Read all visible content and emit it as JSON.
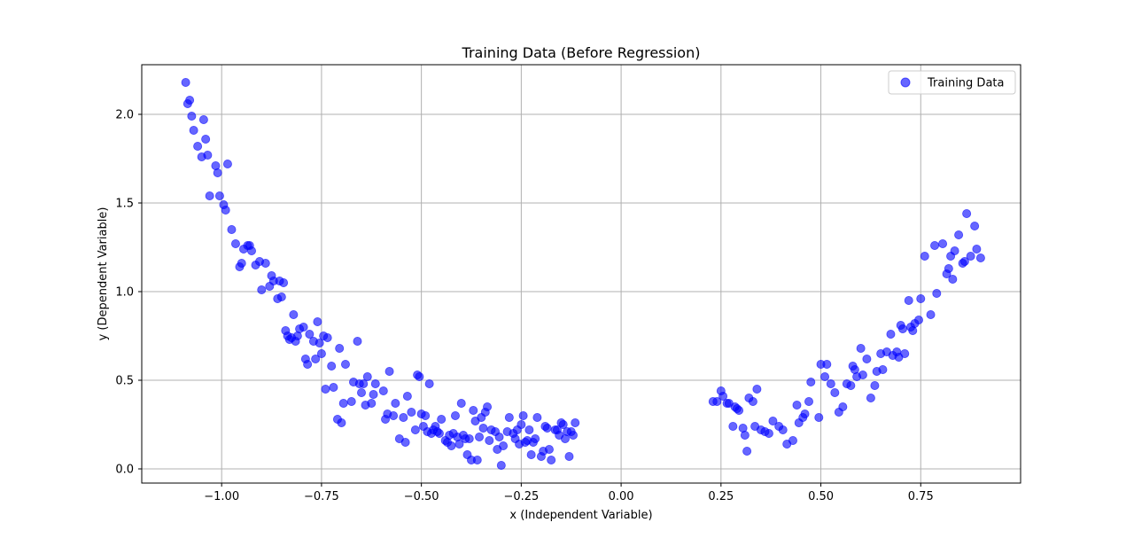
{
  "chart_data": {
    "type": "scatter",
    "title": "Training Data (Before Regression)",
    "xlabel": "x (Independent Variable)",
    "ylabel": "y (Dependent Variable)",
    "xlim": [
      -1.2,
      1.0
    ],
    "ylim": [
      -0.08,
      2.28
    ],
    "xticks": [
      -1.0,
      -0.75,
      -0.5,
      -0.25,
      0.0,
      0.25,
      0.5,
      0.75
    ],
    "xtick_labels": [
      "−1.00",
      "−0.75",
      "−0.50",
      "−0.25",
      "0.00",
      "0.25",
      "0.50",
      "0.75"
    ],
    "yticks": [
      0.0,
      0.5,
      1.0,
      1.5,
      2.0
    ],
    "ytick_labels": [
      "0.0",
      "0.5",
      "1.0",
      "1.5",
      "2.0"
    ],
    "grid": true,
    "legend_position": "top-right",
    "series": [
      {
        "name": "Training Data",
        "color": "#0000ff",
        "alpha": 0.6,
        "points": [
          [
            -1.09,
            2.18
          ],
          [
            -1.085,
            2.06
          ],
          [
            -1.08,
            2.08
          ],
          [
            -1.075,
            1.99
          ],
          [
            -1.07,
            1.91
          ],
          [
            -1.06,
            1.82
          ],
          [
            -1.05,
            1.76
          ],
          [
            -1.045,
            1.97
          ],
          [
            -1.04,
            1.86
          ],
          [
            -1.035,
            1.77
          ],
          [
            -1.03,
            1.54
          ],
          [
            -1.015,
            1.71
          ],
          [
            -1.01,
            1.67
          ],
          [
            -1.005,
            1.54
          ],
          [
            -0.995,
            1.49
          ],
          [
            -0.99,
            1.46
          ],
          [
            -0.985,
            1.72
          ],
          [
            -0.975,
            1.35
          ],
          [
            -0.965,
            1.27
          ],
          [
            -0.955,
            1.14
          ],
          [
            -0.95,
            1.16
          ],
          [
            -0.945,
            1.24
          ],
          [
            -0.935,
            1.26
          ],
          [
            -0.93,
            1.26
          ],
          [
            -0.925,
            1.23
          ],
          [
            -0.915,
            1.15
          ],
          [
            -0.905,
            1.17
          ],
          [
            -0.9,
            1.01
          ],
          [
            -0.89,
            1.16
          ],
          [
            -0.88,
            1.03
          ],
          [
            -0.875,
            1.09
          ],
          [
            -0.87,
            1.06
          ],
          [
            -0.86,
            0.96
          ],
          [
            -0.855,
            1.06
          ],
          [
            -0.85,
            0.97
          ],
          [
            -0.845,
            1.05
          ],
          [
            -0.84,
            0.78
          ],
          [
            -0.835,
            0.75
          ],
          [
            -0.83,
            0.73
          ],
          [
            -0.825,
            0.74
          ],
          [
            -0.82,
            0.87
          ],
          [
            -0.815,
            0.72
          ],
          [
            -0.81,
            0.75
          ],
          [
            -0.805,
            0.79
          ],
          [
            -0.795,
            0.8
          ],
          [
            -0.79,
            0.62
          ],
          [
            -0.785,
            0.59
          ],
          [
            -0.78,
            0.76
          ],
          [
            -0.77,
            0.72
          ],
          [
            -0.765,
            0.62
          ],
          [
            -0.76,
            0.83
          ],
          [
            -0.755,
            0.71
          ],
          [
            -0.75,
            0.65
          ],
          [
            -0.745,
            0.75
          ],
          [
            -0.74,
            0.45
          ],
          [
            -0.735,
            0.74
          ],
          [
            -0.725,
            0.58
          ],
          [
            -0.72,
            0.46
          ],
          [
            -0.71,
            0.28
          ],
          [
            -0.705,
            0.68
          ],
          [
            -0.7,
            0.26
          ],
          [
            -0.695,
            0.37
          ],
          [
            -0.69,
            0.59
          ],
          [
            -0.675,
            0.38
          ],
          [
            -0.67,
            0.49
          ],
          [
            -0.66,
            0.72
          ],
          [
            -0.655,
            0.48
          ],
          [
            -0.65,
            0.43
          ],
          [
            -0.645,
            0.48
          ],
          [
            -0.64,
            0.36
          ],
          [
            -0.635,
            0.52
          ],
          [
            -0.625,
            0.37
          ],
          [
            -0.62,
            0.42
          ],
          [
            -0.615,
            0.48
          ],
          [
            -0.595,
            0.44
          ],
          [
            -0.59,
            0.28
          ],
          [
            -0.585,
            0.31
          ],
          [
            -0.58,
            0.55
          ],
          [
            -0.57,
            0.3
          ],
          [
            -0.565,
            0.37
          ],
          [
            -0.555,
            0.17
          ],
          [
            -0.545,
            0.29
          ],
          [
            -0.54,
            0.15
          ],
          [
            -0.535,
            0.41
          ],
          [
            -0.525,
            0.32
          ],
          [
            -0.515,
            0.22
          ],
          [
            -0.51,
            0.53
          ],
          [
            -0.505,
            0.52
          ],
          [
            -0.5,
            0.31
          ],
          [
            -0.495,
            0.24
          ],
          [
            -0.49,
            0.3
          ],
          [
            -0.485,
            0.21
          ],
          [
            -0.48,
            0.48
          ],
          [
            -0.475,
            0.2
          ],
          [
            -0.47,
            0.22
          ],
          [
            -0.465,
            0.24
          ],
          [
            -0.46,
            0.21
          ],
          [
            -0.455,
            0.2
          ],
          [
            -0.45,
            0.28
          ],
          [
            -0.44,
            0.16
          ],
          [
            -0.435,
            0.15
          ],
          [
            -0.43,
            0.19
          ],
          [
            -0.425,
            0.13
          ],
          [
            -0.42,
            0.2
          ],
          [
            -0.415,
            0.3
          ],
          [
            -0.41,
            0.18
          ],
          [
            -0.405,
            0.14
          ],
          [
            -0.4,
            0.37
          ],
          [
            -0.395,
            0.19
          ],
          [
            -0.39,
            0.17
          ],
          [
            -0.385,
            0.08
          ],
          [
            -0.38,
            0.17
          ],
          [
            -0.375,
            0.05
          ],
          [
            -0.37,
            0.33
          ],
          [
            -0.365,
            0.27
          ],
          [
            -0.36,
            0.05
          ],
          [
            -0.355,
            0.18
          ],
          [
            -0.35,
            0.29
          ],
          [
            -0.345,
            0.23
          ],
          [
            -0.34,
            0.32
          ],
          [
            -0.335,
            0.35
          ],
          [
            -0.33,
            0.16
          ],
          [
            -0.325,
            0.22
          ],
          [
            -0.315,
            0.21
          ],
          [
            -0.31,
            0.11
          ],
          [
            -0.305,
            0.18
          ],
          [
            -0.3,
            0.02
          ],
          [
            -0.295,
            0.13
          ],
          [
            -0.285,
            0.21
          ],
          [
            -0.28,
            0.29
          ],
          [
            -0.27,
            0.2
          ],
          [
            -0.265,
            0.17
          ],
          [
            -0.26,
            0.22
          ],
          [
            -0.255,
            0.14
          ],
          [
            -0.25,
            0.25
          ],
          [
            -0.245,
            0.3
          ],
          [
            -0.24,
            0.15
          ],
          [
            -0.235,
            0.16
          ],
          [
            -0.23,
            0.22
          ],
          [
            -0.225,
            0.08
          ],
          [
            -0.22,
            0.15
          ],
          [
            -0.215,
            0.17
          ],
          [
            -0.21,
            0.29
          ],
          [
            -0.2,
            0.07
          ],
          [
            -0.195,
            0.1
          ],
          [
            -0.19,
            0.24
          ],
          [
            -0.185,
            0.23
          ],
          [
            -0.18,
            0.11
          ],
          [
            -0.175,
            0.05
          ],
          [
            -0.165,
            0.22
          ],
          [
            -0.16,
            0.22
          ],
          [
            -0.155,
            0.19
          ],
          [
            -0.15,
            0.26
          ],
          [
            -0.145,
            0.25
          ],
          [
            -0.14,
            0.17
          ],
          [
            -0.135,
            0.21
          ],
          [
            -0.13,
            0.07
          ],
          [
            -0.125,
            0.21
          ],
          [
            -0.12,
            0.19
          ],
          [
            -0.115,
            0.26
          ],
          [
            0.23,
            0.38
          ],
          [
            0.24,
            0.38
          ],
          [
            0.25,
            0.44
          ],
          [
            0.255,
            0.41
          ],
          [
            0.265,
            0.37
          ],
          [
            0.27,
            0.37
          ],
          [
            0.28,
            0.24
          ],
          [
            0.285,
            0.35
          ],
          [
            0.29,
            0.34
          ],
          [
            0.295,
            0.33
          ],
          [
            0.305,
            0.23
          ],
          [
            0.31,
            0.19
          ],
          [
            0.315,
            0.1
          ],
          [
            0.32,
            0.4
          ],
          [
            0.33,
            0.38
          ],
          [
            0.335,
            0.24
          ],
          [
            0.34,
            0.45
          ],
          [
            0.35,
            0.22
          ],
          [
            0.36,
            0.21
          ],
          [
            0.37,
            0.2
          ],
          [
            0.38,
            0.27
          ],
          [
            0.395,
            0.24
          ],
          [
            0.405,
            0.22
          ],
          [
            0.415,
            0.14
          ],
          [
            0.43,
            0.16
          ],
          [
            0.44,
            0.36
          ],
          [
            0.445,
            0.26
          ],
          [
            0.455,
            0.29
          ],
          [
            0.46,
            0.31
          ],
          [
            0.47,
            0.38
          ],
          [
            0.475,
            0.49
          ],
          [
            0.495,
            0.29
          ],
          [
            0.5,
            0.59
          ],
          [
            0.51,
            0.52
          ],
          [
            0.515,
            0.59
          ],
          [
            0.525,
            0.48
          ],
          [
            0.535,
            0.43
          ],
          [
            0.545,
            0.32
          ],
          [
            0.555,
            0.35
          ],
          [
            0.565,
            0.48
          ],
          [
            0.575,
            0.47
          ],
          [
            0.58,
            0.58
          ],
          [
            0.585,
            0.56
          ],
          [
            0.59,
            0.52
          ],
          [
            0.6,
            0.68
          ],
          [
            0.605,
            0.53
          ],
          [
            0.615,
            0.62
          ],
          [
            0.625,
            0.4
          ],
          [
            0.635,
            0.47
          ],
          [
            0.64,
            0.55
          ],
          [
            0.65,
            0.65
          ],
          [
            0.655,
            0.56
          ],
          [
            0.665,
            0.66
          ],
          [
            0.675,
            0.76
          ],
          [
            0.68,
            0.64
          ],
          [
            0.69,
            0.66
          ],
          [
            0.695,
            0.63
          ],
          [
            0.7,
            0.81
          ],
          [
            0.705,
            0.79
          ],
          [
            0.71,
            0.65
          ],
          [
            0.72,
            0.95
          ],
          [
            0.725,
            0.8
          ],
          [
            0.73,
            0.78
          ],
          [
            0.735,
            0.82
          ],
          [
            0.745,
            0.84
          ],
          [
            0.75,
            0.96
          ],
          [
            0.76,
            1.2
          ],
          [
            0.775,
            0.87
          ],
          [
            0.785,
            1.26
          ],
          [
            0.79,
            0.99
          ],
          [
            0.805,
            1.27
          ],
          [
            0.815,
            1.1
          ],
          [
            0.82,
            1.13
          ],
          [
            0.825,
            1.2
          ],
          [
            0.83,
            1.07
          ],
          [
            0.835,
            1.23
          ],
          [
            0.845,
            1.32
          ],
          [
            0.855,
            1.16
          ],
          [
            0.86,
            1.17
          ],
          [
            0.865,
            1.44
          ],
          [
            0.875,
            1.2
          ],
          [
            0.885,
            1.37
          ],
          [
            0.89,
            1.24
          ],
          [
            0.9,
            1.19
          ]
        ]
      }
    ]
  }
}
